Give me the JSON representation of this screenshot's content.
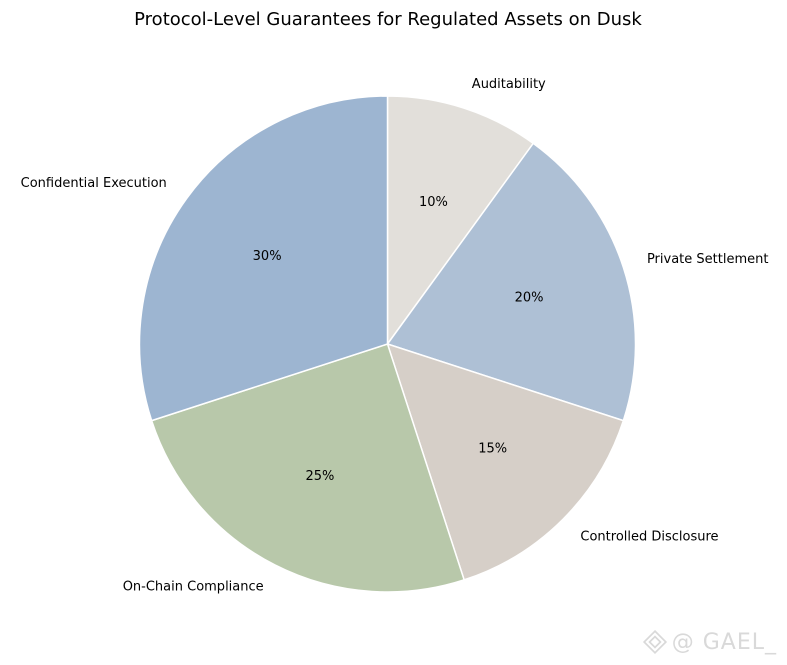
{
  "chart_data": {
    "type": "pie",
    "title": "Protocol-Level Guarantees for Regulated Assets on Dusk",
    "start_angle_deg": 90,
    "direction": "clockwise",
    "slices": [
      {
        "label": "Auditability",
        "value": 10,
        "pct_label": "10%",
        "color": "#e2dfda"
      },
      {
        "label": "Private Settlement",
        "value": 20,
        "pct_label": "20%",
        "color": "#aec0d5"
      },
      {
        "label": "Controlled Disclosure",
        "value": 15,
        "pct_label": "15%",
        "color": "#d6cfc8"
      },
      {
        "label": "On-Chain Compliance",
        "value": 25,
        "pct_label": "25%",
        "color": "#b8c8aa"
      },
      {
        "label": "Confidential Execution",
        "value": 30,
        "pct_label": "30%",
        "color": "#9db5d1"
      }
    ]
  },
  "watermark": {
    "text": "@ GAEL_",
    "icon": "binance-logo-icon"
  }
}
